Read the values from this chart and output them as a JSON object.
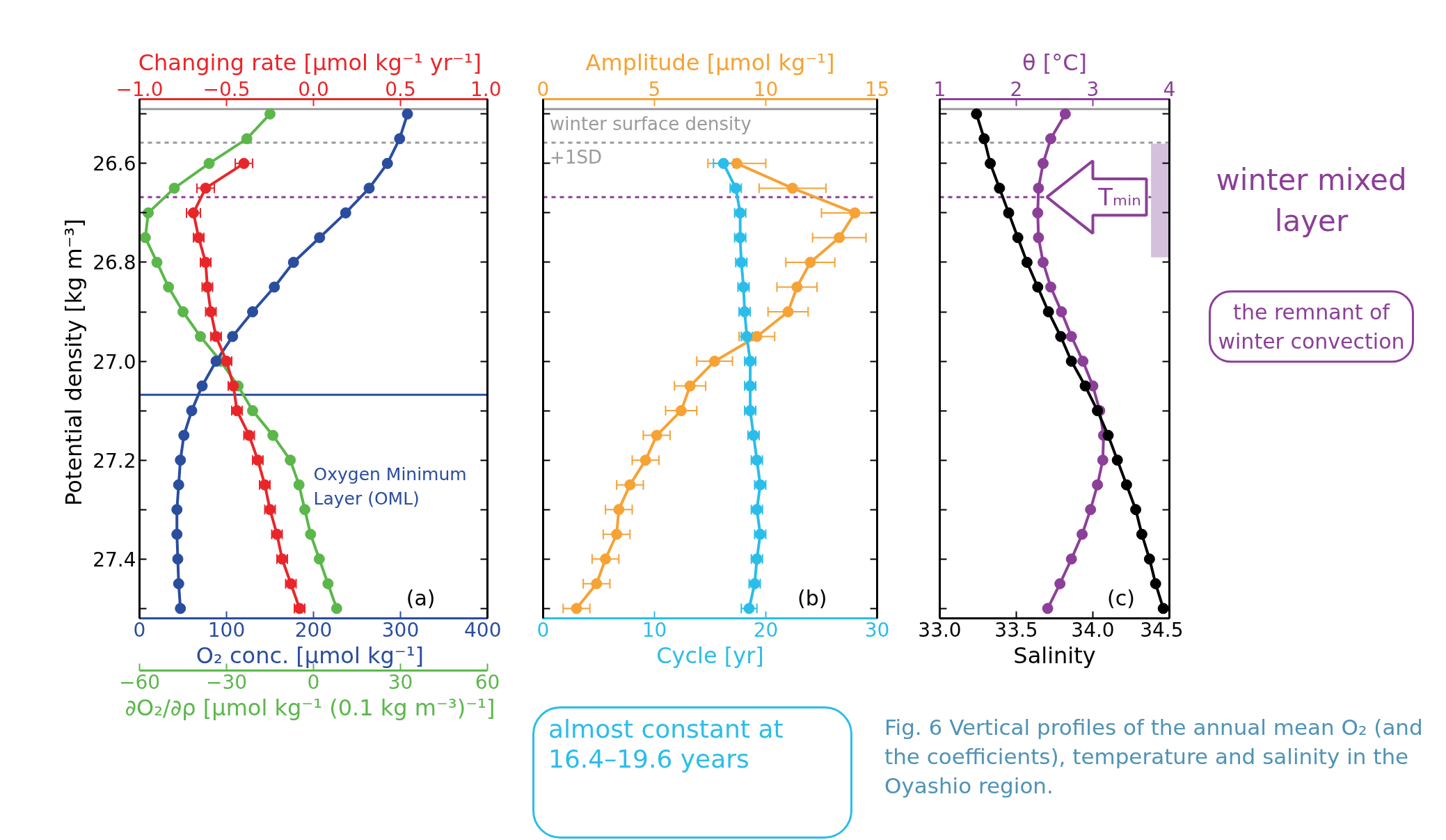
{
  "chart_data": [
    {
      "type": "line",
      "marker": "circle",
      "xlabel": "O₂ conc.  [µmol kg⁻¹]",
      "x2label": "Changing rate  [µmol kg⁻¹ yr⁻¹]",
      "ylabel": "Potential density [kg  m⁻³]",
      "xlim": [
        0,
        400
      ],
      "xticks": [
        0,
        100,
        200,
        300,
        400
      ],
      "x2lim": [
        -1,
        1
      ],
      "x2ticks": [
        {
          "value": -1,
          "label": "−1.0"
        },
        {
          "value": -0.5,
          "label": "−0.5"
        },
        {
          "value": 0,
          "label": "0.0"
        },
        {
          "value": 0.5,
          "label": "0.5"
        },
        {
          "value": 1,
          "label": "1.0"
        }
      ],
      "ylim": [
        27.52,
        26.47
      ],
      "yticks": [
        {
          "value": 26.5,
          "label": null
        },
        26.6,
        {
          "value": 26.7,
          "label": null
        },
        26.8,
        {
          "value": 26.9,
          "label": null
        },
        {
          "value": 27.0,
          "label": "27.0"
        },
        {
          "value": 27.1,
          "label": null
        },
        27.2,
        {
          "value": 27.3,
          "label": null
        },
        27.4,
        {
          "value": 27.5,
          "label": null
        }
      ],
      "series": [
        {
          "color": "#2a4d9e",
          "x": [
            308,
            299,
            285,
            264,
            237,
            207,
            177,
            155,
            130,
            107,
            88,
            72,
            60,
            51,
            47,
            45,
            43,
            43,
            44,
            45,
            47
          ],
          "values": [
            26.5,
            26.55,
            26.6,
            26.65,
            26.7,
            26.75,
            26.8,
            26.85,
            26.9,
            26.95,
            27.0,
            27.05,
            27.1,
            27.15,
            27.2,
            27.25,
            27.3,
            27.35,
            27.4,
            27.45,
            27.5
          ]
        },
        {
          "color": "#e8262a",
          "axis": "x2",
          "x": [
            -0.4,
            -0.62,
            -0.69,
            -0.66,
            -0.62,
            -0.61,
            -0.59,
            -0.56,
            -0.5,
            -0.46,
            -0.44,
            -0.37,
            -0.32,
            -0.28,
            -0.25,
            -0.21,
            -0.18,
            -0.13,
            -0.08
          ],
          "values": [
            26.6,
            26.65,
            26.7,
            26.75,
            26.8,
            26.85,
            26.9,
            26.95,
            27.0,
            27.05,
            27.1,
            27.15,
            27.2,
            27.25,
            27.3,
            27.35,
            27.4,
            27.45,
            27.5
          ],
          "xerrors": [
            0.05,
            0.05,
            0.04,
            0.03,
            0.03,
            0.03,
            0.03,
            0.03,
            0.03,
            0.03,
            0.03,
            0.03,
            0.03,
            0.03,
            0.03,
            0.03,
            0.03,
            0.03,
            0.03
          ]
        }
      ],
      "ref_lines": [
        {
          "axis": "y",
          "value": 26.49,
          "color": "#9a9a9a",
          "line_style": "solid"
        },
        {
          "axis": "y",
          "value": 26.558,
          "color": "#9a9a9a",
          "line_style": "dashed"
        },
        {
          "axis": "y",
          "value": 26.668,
          "color": "#8c3f98",
          "line_style": "dashed"
        },
        {
          "axis": "y",
          "value": 27.068,
          "color": "#2a4d9e",
          "line_style": "solid",
          "label": "Oxygen Minimum Layer (OML)"
        }
      ],
      "annotations": [
        "(a)"
      ]
    },
    {
      "type": "line",
      "marker": "circle",
      "tick_labels": "x",
      "xlabel": "∂O₂/∂ρ [µmol kg⁻¹ (0.1 kg  m⁻³)⁻¹]",
      "xlim": [
        -60,
        60
      ],
      "xticks": [
        {
          "value": -60,
          "label": "−60"
        },
        {
          "value": -30,
          "label": "−30"
        },
        0,
        30,
        60
      ],
      "ylim": [
        27.52,
        26.47
      ],
      "series": [
        {
          "color": "#5bb74a",
          "x": [
            -15,
            -23,
            -36,
            -48,
            -57,
            -58,
            -54,
            -50,
            -45,
            -39,
            -32,
            -26,
            -21,
            -14,
            -8,
            -5,
            -3,
            -1,
            2,
            5,
            8
          ],
          "values": [
            26.5,
            26.55,
            26.6,
            26.65,
            26.7,
            26.75,
            26.8,
            26.85,
            26.9,
            26.95,
            27.0,
            27.05,
            27.1,
            27.15,
            27.2,
            27.25,
            27.3,
            27.35,
            27.4,
            27.45,
            27.5
          ]
        }
      ]
    },
    {
      "type": "line",
      "marker": "circle",
      "tick_labels": "x",
      "xlabel": "Cycle [yr]",
      "x2label": "Amplitude [µmol kg⁻¹]",
      "xlim": [
        0,
        30
      ],
      "xticks": [
        0,
        10,
        20,
        30
      ],
      "x2lim": [
        0,
        15
      ],
      "x2ticks": [
        0,
        5,
        10,
        15
      ],
      "ylim": [
        27.52,
        26.47
      ],
      "yticks": [
        26.5,
        26.6,
        26.7,
        26.8,
        26.9,
        27.0,
        27.1,
        27.2,
        27.3,
        27.4,
        27.5
      ],
      "series": [
        {
          "color": "#f6a235",
          "axis": "x2",
          "x": [
            8.7,
            11.2,
            14.0,
            13.3,
            12.0,
            11.4,
            11.0,
            9.6,
            7.7,
            6.6,
            6.2,
            5.1,
            4.6,
            3.9,
            3.4,
            3.3,
            2.8,
            2.4,
            1.5
          ],
          "values": [
            26.6,
            26.65,
            26.7,
            26.75,
            26.8,
            26.85,
            26.9,
            26.95,
            27.0,
            27.05,
            27.1,
            27.15,
            27.2,
            27.25,
            27.3,
            27.35,
            27.4,
            27.45,
            27.5
          ],
          "xerrors": [
            1.3,
            1.5,
            1.5,
            1.2,
            1.1,
            0.9,
            0.9,
            0.8,
            0.8,
            0.7,
            0.7,
            0.6,
            0.6,
            0.6,
            0.6,
            0.6,
            0.6,
            0.6,
            0.6
          ]
        },
        {
          "color": "#2bbde9",
          "x": [
            16.2,
            17.3,
            17.7,
            17.7,
            17.8,
            18.0,
            18.1,
            18.3,
            18.6,
            18.6,
            18.6,
            18.9,
            19.2,
            19.5,
            19.2,
            19.5,
            19.2,
            19.0,
            18.5
          ],
          "values": [
            26.6,
            26.65,
            26.7,
            26.75,
            26.8,
            26.85,
            26.9,
            26.95,
            27.0,
            27.05,
            27.1,
            27.15,
            27.2,
            27.25,
            27.3,
            27.35,
            27.4,
            27.45,
            27.5
          ],
          "xerrors": [
            0.9,
            0.5,
            0.5,
            0.5,
            0.5,
            0.5,
            0.5,
            0.5,
            0.5,
            0.5,
            0.5,
            0.5,
            0.5,
            0.5,
            0.5,
            0.5,
            0.5,
            0.5,
            0.7
          ]
        }
      ],
      "ref_lines": [
        {
          "axis": "y",
          "value": 26.49,
          "color": "#9a9a9a",
          "line_style": "solid",
          "label": "winter surface density"
        },
        {
          "axis": "y",
          "value": 26.558,
          "color": "#9a9a9a",
          "line_style": "dashed",
          "label": "+1SD"
        },
        {
          "axis": "y",
          "value": 26.668,
          "color": "#8c3f98",
          "line_style": "dashed"
        }
      ],
      "annotations": [
        "(b)",
        "almost constant at 16.4–19.6 years"
      ]
    },
    {
      "type": "line",
      "marker": "circle",
      "tick_labels": "x",
      "xlabel": "Salinity",
      "x2label": "θ [°C]",
      "xlim": [
        33.0,
        34.5
      ],
      "xticks": [
        {
          "value": 33.0,
          "label": "33.0"
        },
        {
          "value": 33.5,
          "label": "33.5"
        },
        {
          "value": 34.0,
          "label": "34.0"
        },
        {
          "value": 34.5,
          "label": "34.5"
        }
      ],
      "x2lim": [
        1,
        4
      ],
      "x2ticks": [
        1,
        2,
        3,
        4
      ],
      "ylim": [
        27.52,
        26.47
      ],
      "yticks": [
        26.5,
        26.6,
        26.7,
        26.8,
        26.9,
        27.0,
        27.1,
        27.2,
        27.3,
        27.4,
        27.5
      ],
      "series": [
        {
          "color": "#8c3f98",
          "axis": "x2",
          "x": [
            2.64,
            2.45,
            2.35,
            2.29,
            2.28,
            2.29,
            2.35,
            2.45,
            2.59,
            2.72,
            2.87,
            3.0,
            3.09,
            3.14,
            3.13,
            3.06,
            2.97,
            2.86,
            2.72,
            2.57,
            2.41
          ],
          "values": [
            26.5,
            26.55,
            26.6,
            26.65,
            26.7,
            26.75,
            26.8,
            26.85,
            26.9,
            26.95,
            27.0,
            27.05,
            27.1,
            27.15,
            27.2,
            27.25,
            27.3,
            27.35,
            27.4,
            27.45,
            27.5
          ]
        },
        {
          "color": "#000000",
          "x": [
            33.24,
            33.29,
            33.33,
            33.39,
            33.45,
            33.51,
            33.57,
            33.64,
            33.71,
            33.79,
            33.86,
            33.95,
            34.03,
            34.1,
            34.16,
            34.22,
            34.28,
            34.32,
            34.37,
            34.41,
            34.46
          ],
          "values": [
            26.5,
            26.55,
            26.6,
            26.65,
            26.7,
            26.75,
            26.8,
            26.85,
            26.9,
            26.95,
            27.0,
            27.05,
            27.1,
            27.15,
            27.2,
            27.25,
            27.3,
            27.35,
            27.4,
            27.45,
            27.5
          ]
        }
      ],
      "ref_lines": [
        {
          "axis": "y",
          "value": 26.49,
          "color": "#9a9a9a",
          "line_style": "solid"
        },
        {
          "axis": "y",
          "value": 26.558,
          "color": "#9a9a9a",
          "line_style": "dashed"
        },
        {
          "axis": "y",
          "value": 26.668,
          "color": "#8c3f98",
          "line_style": "dashed"
        }
      ],
      "bands": [
        {
          "axis": "y",
          "from": 26.56,
          "to": 26.79,
          "label": "winter mixed layer",
          "color": "#d4bfdc"
        }
      ],
      "annotations": [
        "(c)",
        {
          "text": "Tₘᵢₙ",
          "x": 33.7,
          "y": 26.668
        },
        "the remnant of winter convection",
        "Fig. 6  Vertical profiles of the annual mean O₂ (and the coefficients), temperature and salinity in the Oyashio region."
      ]
    }
  ]
}
